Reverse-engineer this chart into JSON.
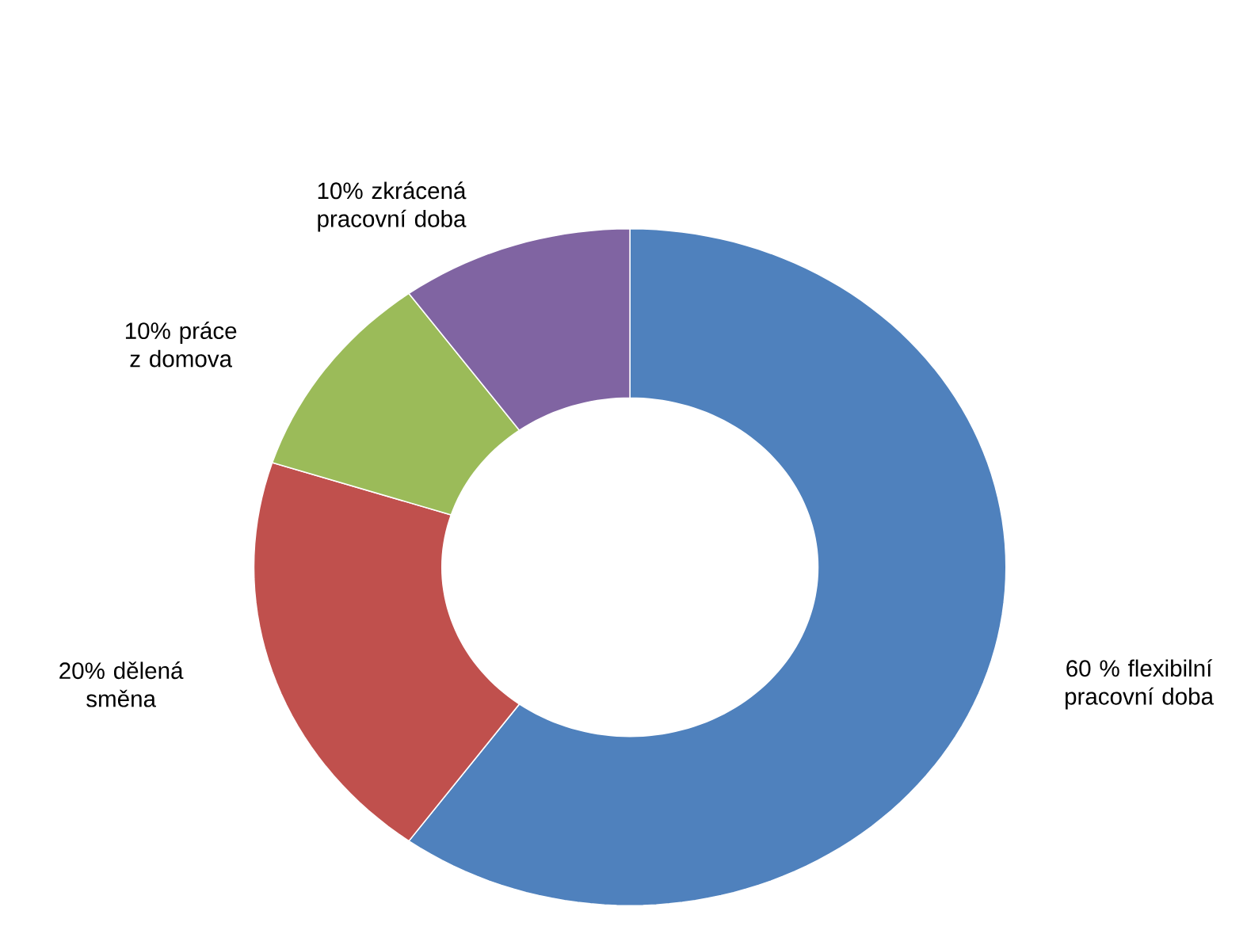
{
  "chart_data": {
    "type": "donut",
    "categories": [
      "60 % flexibilní pracovní doba",
      "20% dělená směna",
      "10% práce z domova",
      "10% zkrácená pracovní doba"
    ],
    "values": [
      60,
      20,
      10,
      10
    ],
    "colors": [
      "#4f81bd",
      "#c0504d",
      "#9bbb59",
      "#8064a2"
    ]
  }
}
